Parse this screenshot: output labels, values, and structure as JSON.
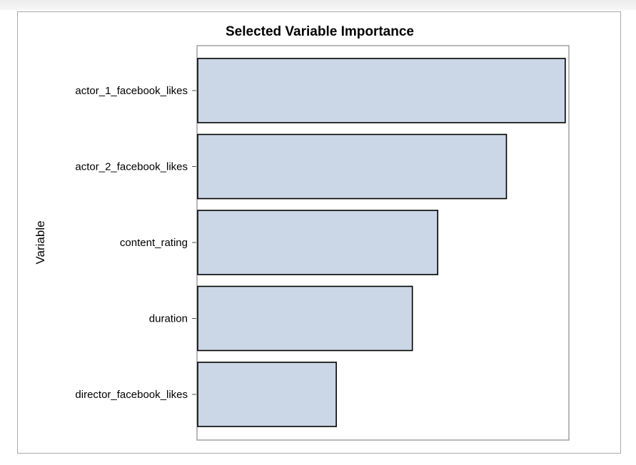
{
  "chart_data": {
    "type": "bar",
    "orientation": "horizontal",
    "title": "Selected Variable Importance",
    "ylabel": "Variable",
    "xlabel": "",
    "categories": [
      "actor_1_facebook_likes",
      "actor_2_facebook_likes",
      "content_rating",
      "duration",
      "director_facebook_likes"
    ],
    "values": [
      1.0,
      0.84,
      0.653,
      0.584,
      0.377
    ],
    "xlim": [
      0,
      1.01
    ],
    "grid": false,
    "bar_color": "#cbd6e6",
    "bar_edge_color": "#000000",
    "frame_color": "#a0a0a0"
  }
}
